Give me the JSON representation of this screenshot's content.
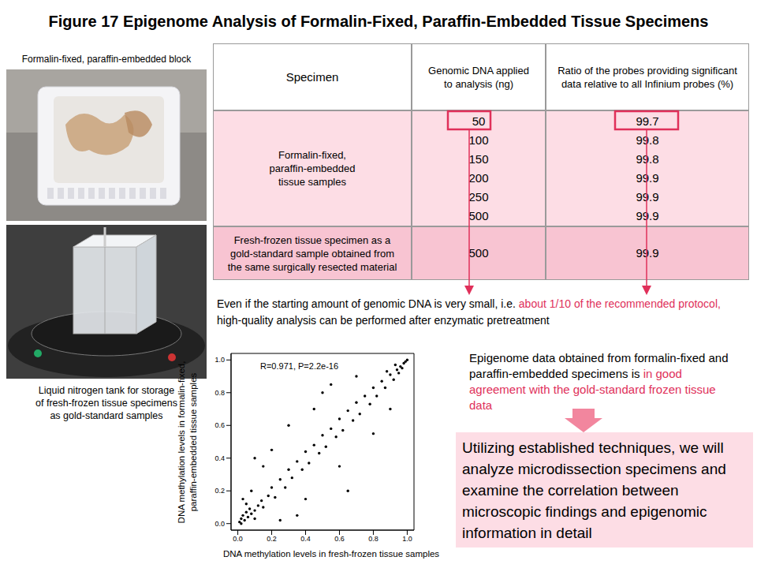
{
  "title": "Figure 17   Epigenome Analysis of Formalin-Fixed, Paraffin-Embedded Tissue Specimens",
  "photos": {
    "block_caption": "Formalin-fixed, paraffin-embedded block",
    "tank_caption_lines": [
      "Liquid nitrogen tank for storage",
      "of fresh-frozen tissue specimens",
      "as gold-standard samples"
    ]
  },
  "table": {
    "headers": [
      [
        "Specimen"
      ],
      [
        "Genomic DNA applied",
        "to analysis (ng)"
      ],
      [
        "Ratio of the probes providing significant",
        "data relative to all Infinium probes (%)"
      ]
    ],
    "rows": [
      {
        "specimen_lines": [
          "Formalin-fixed,",
          "paraffin-embedded",
          "tissue samples"
        ],
        "dna_ng": [
          50,
          100,
          150,
          200,
          250,
          500
        ],
        "ratio_pct": [
          99.7,
          99.8,
          99.8,
          99.9,
          99.9,
          99.9
        ]
      },
      {
        "specimen_lines": [
          "Fresh-frozen tissue specimen as a",
          "gold-standard sample obtained from",
          "the same surgically resected material"
        ],
        "dna_ng": [
          500
        ],
        "ratio_pct": [
          99.9
        ]
      }
    ]
  },
  "note": {
    "before": "Even if the starting amount of genomic DNA is very small, i.e. ",
    "highlight": "about 1/10 of the recommended protocol,",
    "after": "high-quality analysis can be performed after enzymatic pretreatment"
  },
  "finding": {
    "before": "Epigenome data obtained from formalin-fixed and paraffin-embedded specimens is ",
    "highlight": "in good agreement with the gold-standard frozen tissue data"
  },
  "conclusion": "Utilizing established techniques, we will analyze microdissection specimens and examine the correlation between microscopic findings and epigenomic information in detail",
  "chart_data": {
    "type": "scatter",
    "annotation": "R=0.971, P=2.2e-16",
    "xlabel": "DNA methylation levels in fresh-frozen tissue samples",
    "ylabel": "DNA methylation levels in formalin-fixed, paraffin-embedded tissue samples",
    "x": [
      0.01,
      0.02,
      0.03,
      0.04,
      0.05,
      0.06,
      0.07,
      0.08,
      0.1,
      0.12,
      0.02,
      0.05,
      0.03,
      0.08,
      0.1,
      0.14,
      0.15,
      0.18,
      0.2,
      0.22,
      0.25,
      0.28,
      0.3,
      0.32,
      0.35,
      0.38,
      0.4,
      0.42,
      0.45,
      0.48,
      0.5,
      0.52,
      0.55,
      0.58,
      0.6,
      0.62,
      0.65,
      0.68,
      0.7,
      0.72,
      0.75,
      0.78,
      0.8,
      0.82,
      0.85,
      0.87,
      0.9,
      0.92,
      0.94,
      0.95,
      0.96,
      0.97,
      0.98,
      0.99,
      1.0,
      0.93,
      0.88,
      0.3,
      0.5,
      0.2,
      0.6,
      0.8,
      0.4,
      0.7,
      0.15,
      0.9,
      0.35,
      0.1,
      0.65,
      0.25,
      0.55,
      0.45
    ],
    "values": [
      0.01,
      0.03,
      0.05,
      0.02,
      0.07,
      0.04,
      0.09,
      0.06,
      0.08,
      0.11,
      0.0,
      0.12,
      0.15,
      0.2,
      0.03,
      0.14,
      0.1,
      0.17,
      0.22,
      0.16,
      0.27,
      0.22,
      0.33,
      0.28,
      0.38,
      0.33,
      0.44,
      0.37,
      0.48,
      0.43,
      0.54,
      0.47,
      0.58,
      0.53,
      0.64,
      0.57,
      0.69,
      0.63,
      0.74,
      0.67,
      0.78,
      0.73,
      0.83,
      0.78,
      0.87,
      0.83,
      0.91,
      0.88,
      0.94,
      0.92,
      0.96,
      0.95,
      0.98,
      0.99,
      1.0,
      0.97,
      0.93,
      0.6,
      0.8,
      0.45,
      0.35,
      0.55,
      0.15,
      0.9,
      0.35,
      0.7,
      0.05,
      0.4,
      0.2,
      0.02,
      0.85,
      0.7
    ],
    "color": "#000000",
    "marker": "circle",
    "grid": false,
    "xlim": [
      -0.04,
      1.04
    ],
    "ylim": [
      -0.04,
      1.04
    ],
    "xticks": [
      {
        "value": 0,
        "label": "0.0"
      },
      0.2,
      0.4,
      0.6,
      0.8,
      {
        "value": 1,
        "label": "1.0"
      }
    ],
    "yticks": [
      {
        "value": 0,
        "label": "0.0"
      },
      0.2,
      0.4,
      0.6,
      0.8,
      {
        "value": 1,
        "label": "1.0"
      }
    ]
  }
}
